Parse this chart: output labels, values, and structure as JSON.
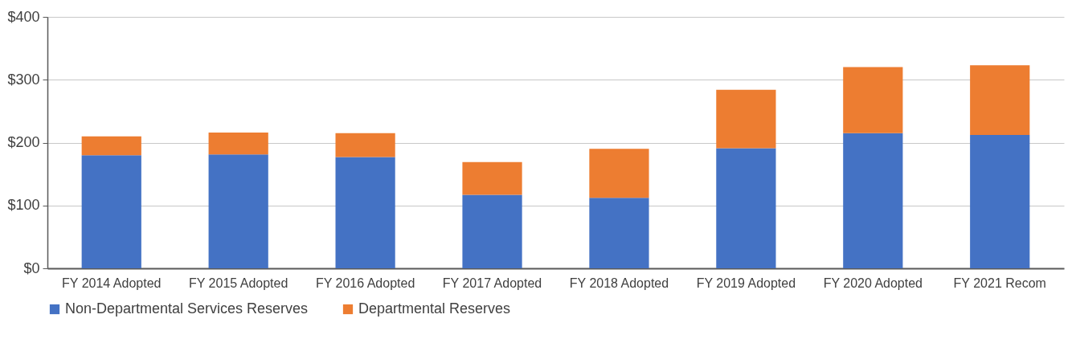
{
  "chart_data": {
    "type": "bar",
    "stacked": true,
    "categories": [
      "FY 2014 Adopted",
      "FY 2015 Adopted",
      "FY 2016 Adopted",
      "FY 2017 Adopted",
      "FY 2018 Adopted",
      "FY 2019 Adopted",
      "FY 2020 Adopted",
      "FY 2021 Recom"
    ],
    "series": [
      {
        "name": "Non-Departmental Services Reserves",
        "color": "#4472c4",
        "values": [
          180,
          181,
          177,
          117,
          112,
          191,
          215,
          212
        ]
      },
      {
        "name": "Departmental Reserves",
        "color": "#ed7d31",
        "values": [
          30,
          35,
          38,
          52,
          78,
          93,
          105,
          111
        ]
      }
    ],
    "ylim": [
      0,
      400
    ],
    "yticks": [
      {
        "value": 0,
        "label": "$0"
      },
      {
        "value": 100,
        "label": "$100"
      },
      {
        "value": 200,
        "label": "$200"
      },
      {
        "value": 300,
        "label": "$300"
      },
      {
        "value": 400,
        "label": "$400"
      }
    ],
    "grid": "y",
    "legend": "bottom"
  }
}
